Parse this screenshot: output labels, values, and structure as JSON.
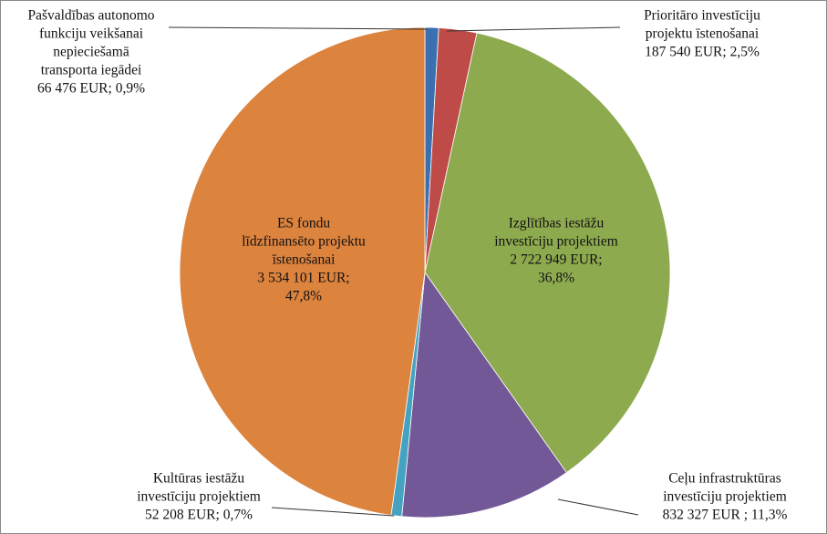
{
  "chart_data": {
    "type": "pie",
    "categories": [
      [
        "Pašvaldības autonomo",
        "funkciju veikšanai",
        "nepieciešamā",
        "transporta iegādei"
      ],
      [
        "Prioritāro investīciju",
        "projektu īstenošanai"
      ],
      [
        "Izglītības iestāžu",
        "investīciju projektiem"
      ],
      [
        "Ceļu infrastruktūras",
        "investīciju projektiem"
      ],
      [
        "Kultūras iestāžu",
        "investīciju projektiem"
      ],
      [
        "ES fondu",
        "līdzfinansēto projektu",
        "īstenošanai"
      ]
    ],
    "values": [
      0.9,
      2.5,
      36.8,
      11.3,
      0.7,
      47.8
    ],
    "value_labels": [
      [
        "66 476 EUR; 0,9%"
      ],
      [
        "187 540 EUR;  2,5%"
      ],
      [
        "2 722 949  EUR;",
        "36,8%"
      ],
      [
        "832 327 EUR ; 11,3%"
      ],
      [
        "52 208  EUR; 0,7%"
      ],
      [
        "3 534 101 EUR;",
        "47,8%"
      ]
    ],
    "colors": [
      "#3a6fb0",
      "#be4b48",
      "#8eaa4f",
      "#725896",
      "#45a3c1",
      "#dc833e"
    ]
  }
}
